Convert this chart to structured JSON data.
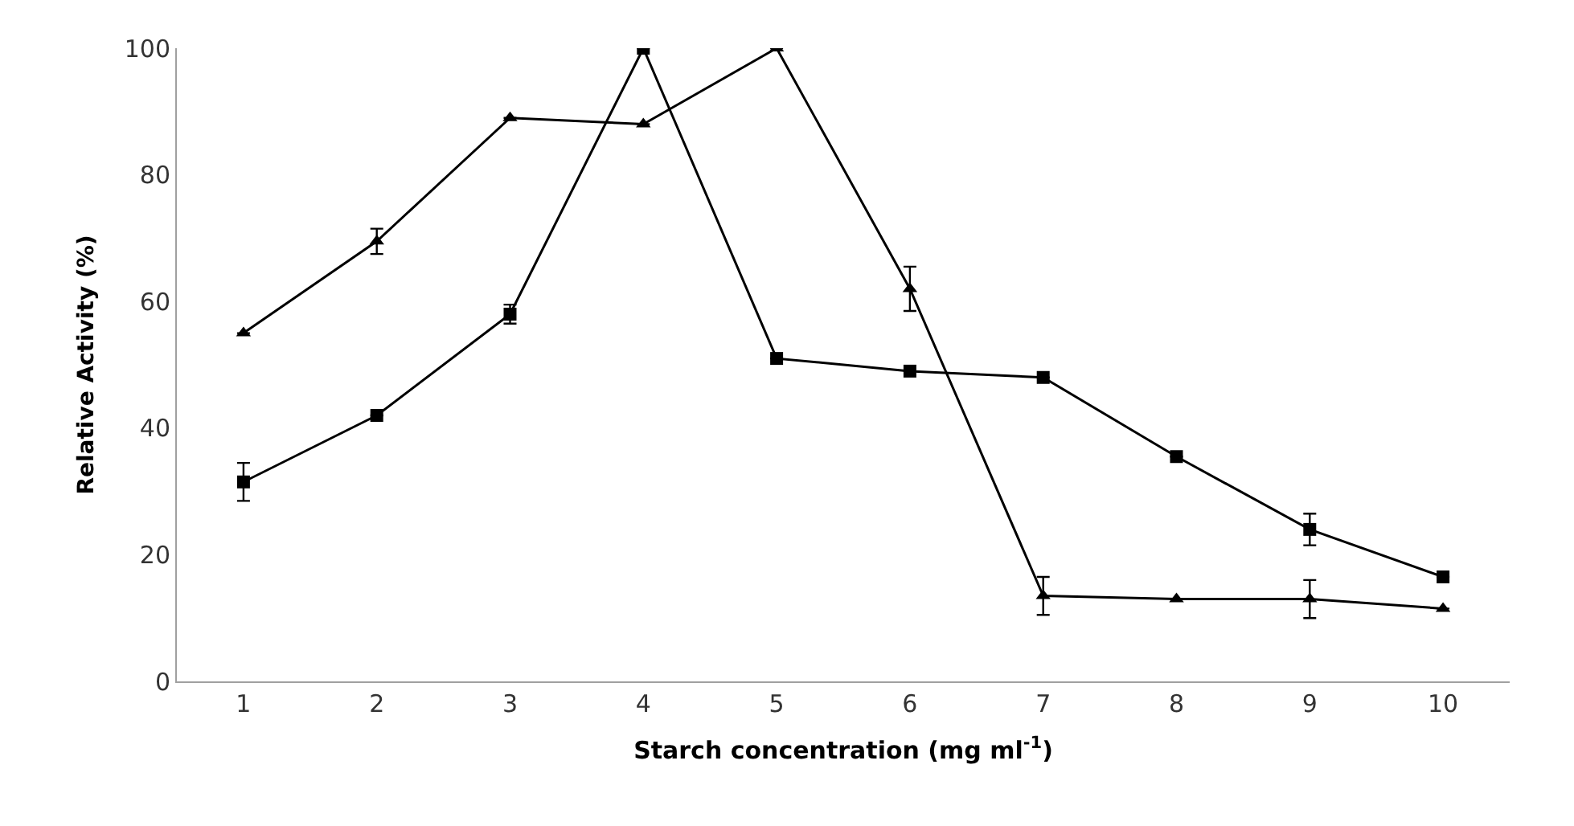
{
  "chart_data": {
    "type": "line",
    "xlabel": "Starch concentration (mg ml$^{-1}$)",
    "ylabel": "Relative Activity (%)",
    "x": [
      1,
      2,
      3,
      4,
      5,
      6,
      7,
      8,
      9,
      10
    ],
    "xlim": [
      0.5,
      10.5
    ],
    "xticks": [
      1,
      2,
      3,
      4,
      5,
      6,
      7,
      8,
      9,
      10
    ],
    "ylim": [
      0,
      100
    ],
    "yticks": [
      0,
      20,
      40,
      60,
      80,
      100
    ],
    "series": [
      {
        "color": "#000000",
        "marker": "square",
        "values": [
          31.5,
          42,
          58,
          100,
          51,
          49,
          48,
          35.5,
          24,
          16.5
        ],
        "errors": [
          3,
          null,
          1.5,
          null,
          null,
          null,
          null,
          null,
          2.5,
          null
        ]
      },
      {
        "color": "#000000",
        "marker": "triangle",
        "values": [
          55,
          69.5,
          89,
          88,
          100,
          62,
          13.5,
          13,
          13,
          11.5
        ],
        "errors": [
          null,
          2,
          null,
          null,
          null,
          3.5,
          3,
          null,
          3,
          null
        ]
      }
    ]
  }
}
